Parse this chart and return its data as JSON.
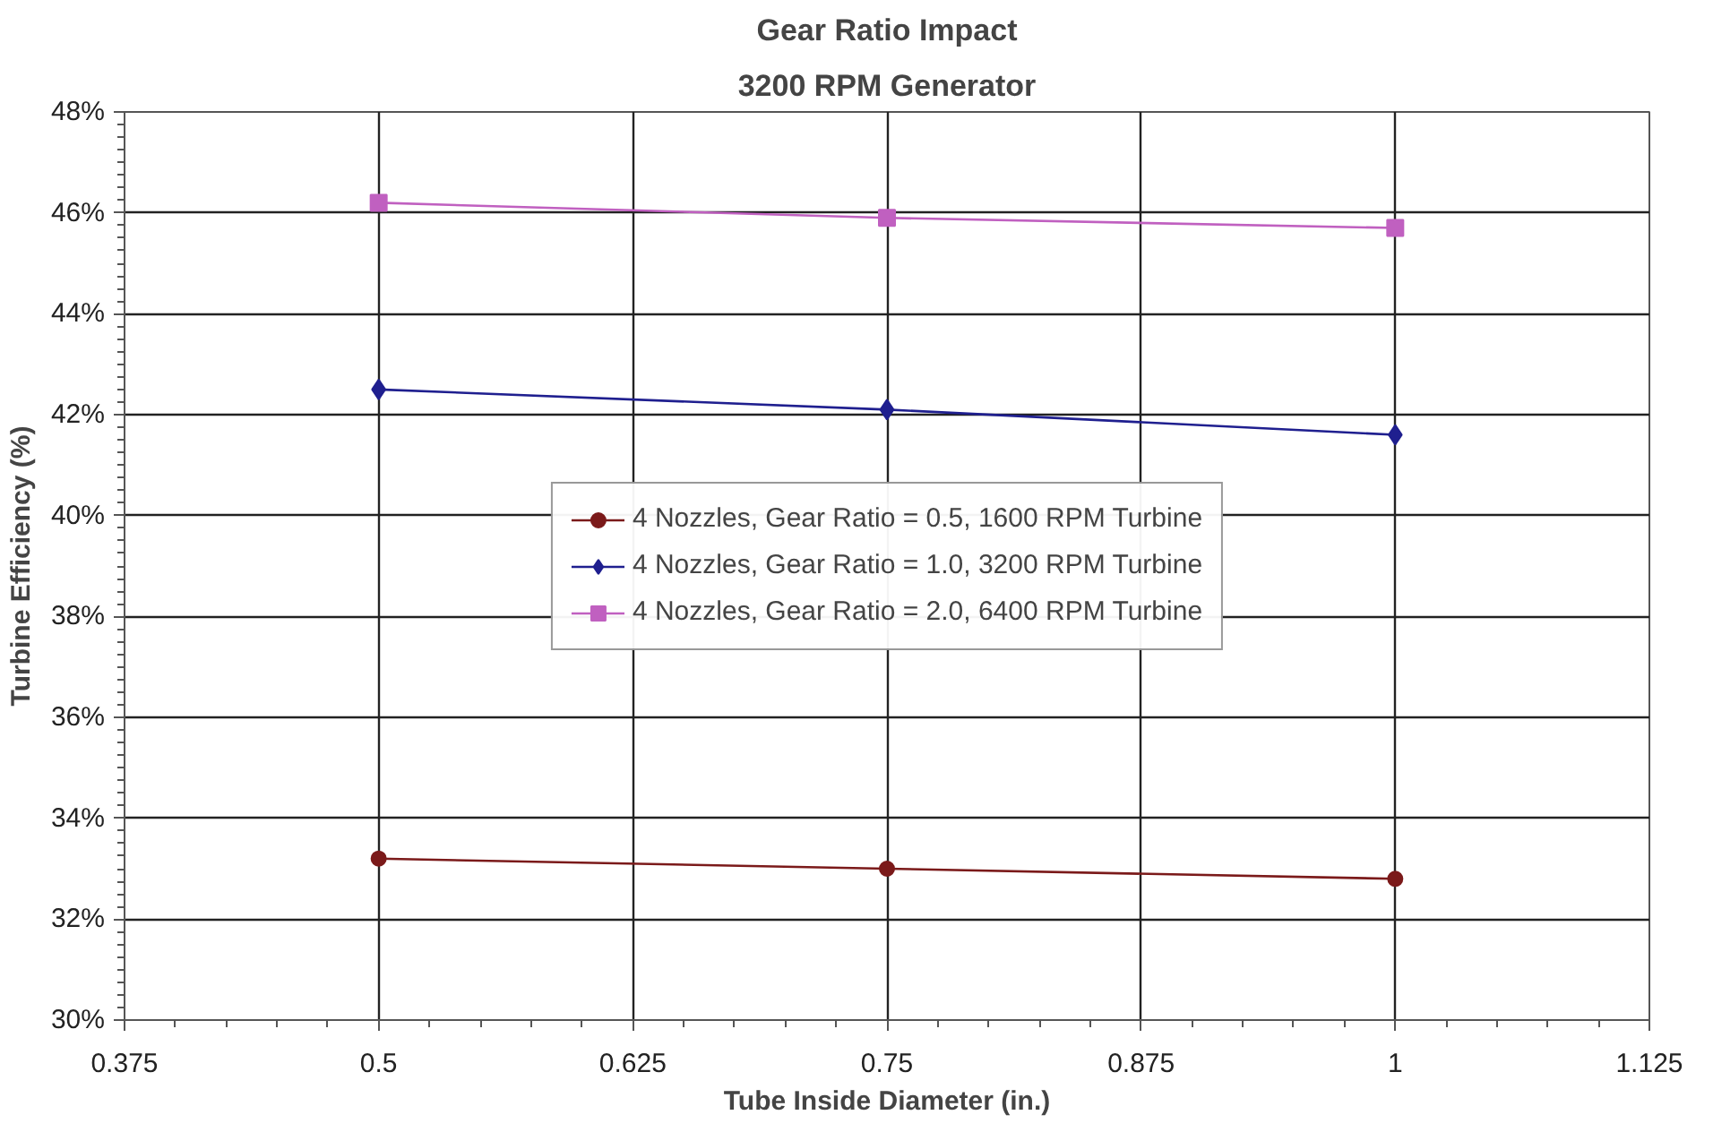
{
  "chart_data": {
    "type": "line",
    "title": "Gear Ratio Impact",
    "subtitle": "3200 RPM Generator",
    "xlabel": "Tube Inside Diameter (in.)",
    "ylabel": "Turbine Efficiency (%)",
    "x": [
      0.5,
      0.75,
      1
    ],
    "series": [
      {
        "name": "4 Nozzles, Gear Ratio = 0.5, 1600 RPM Turbine",
        "color": "#7b1a1a",
        "marker": "circle",
        "values": [
          33.2,
          33.0,
          32.8
        ]
      },
      {
        "name": "4 Nozzles, Gear Ratio = 1.0, 3200 RPM Turbine",
        "color": "#1f1f8f",
        "marker": "diamond",
        "values": [
          42.5,
          42.1,
          41.6
        ]
      },
      {
        "name": "4 Nozzles, Gear Ratio = 2.0, 6400 RPM Turbine",
        "color": "#c060c0",
        "marker": "square",
        "values": [
          46.2,
          45.9,
          45.7
        ]
      }
    ],
    "xlim": [
      0.375,
      1.125
    ],
    "xticks": [
      0.375,
      0.5,
      0.625,
      0.75,
      0.875,
      1,
      1.125
    ],
    "ylim": [
      30,
      48
    ],
    "yticks": [
      {
        "value": 30,
        "label": "30%"
      },
      {
        "value": 32,
        "label": "32%"
      },
      {
        "value": 34,
        "label": "34%"
      },
      {
        "value": 36,
        "label": "36%"
      },
      {
        "value": 38,
        "label": "38%"
      },
      {
        "value": 40,
        "label": "40%"
      },
      {
        "value": 42,
        "label": "42%"
      },
      {
        "value": 44,
        "label": "44%"
      },
      {
        "value": 46,
        "label": "46%"
      },
      {
        "value": 48,
        "label": "48%"
      }
    ],
    "grid": true,
    "legend": "center",
    "line_style": "solid"
  }
}
